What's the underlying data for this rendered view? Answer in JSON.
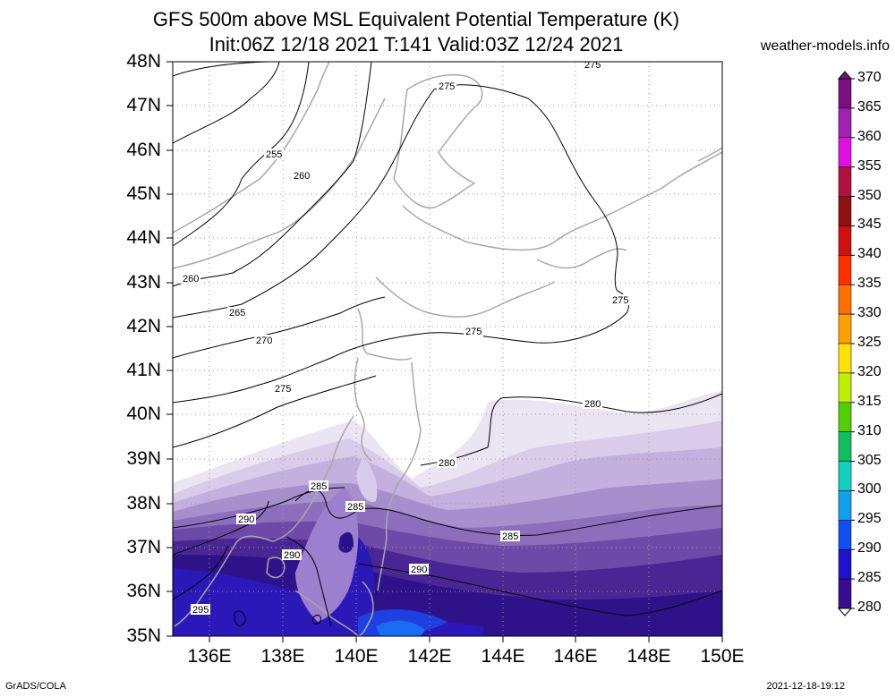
{
  "title_line1": "GFS 500m above MSL Equivalent Potential Temperature (K)",
  "title_line2": "Init:06Z 12/18 2021 T:141 Valid:03Z 12/24 2021",
  "site": "weather-models.info",
  "footer_left": "GrADS/COLA",
  "footer_right": "2021-12-18-19:12",
  "lat_labels": [
    "48N",
    "47N",
    "46N",
    "45N",
    "44N",
    "43N",
    "42N",
    "41N",
    "40N",
    "39N",
    "38N",
    "37N",
    "36N",
    "35N"
  ],
  "lon_labels": [
    "136E",
    "138E",
    "140E",
    "142E",
    "144E",
    "146E",
    "148E",
    "150E"
  ],
  "colorbar": {
    "labels": [
      "370",
      "365",
      "360",
      "355",
      "350",
      "345",
      "340",
      "335",
      "330",
      "325",
      "320",
      "315",
      "310",
      "305",
      "300",
      "295",
      "290",
      "285",
      "280"
    ],
    "colors": [
      "#7a0f80",
      "#a020b0",
      "#e010e0",
      "#b01040",
      "#901010",
      "#d01010",
      "#ff3000",
      "#ff7000",
      "#ffa000",
      "#ffe000",
      "#c0f000",
      "#50d000",
      "#10c060",
      "#10d0c0",
      "#10a0f0",
      "#1050f0",
      "#2010d0",
      "#3a0a90",
      "#b0a0d8"
    ]
  },
  "contour_labels": [
    "255",
    "260",
    "260",
    "265",
    "270",
    "275",
    "275",
    "275",
    "275",
    "275",
    "280",
    "280",
    "285",
    "285",
    "285",
    "290",
    "290",
    "290",
    "295"
  ]
}
